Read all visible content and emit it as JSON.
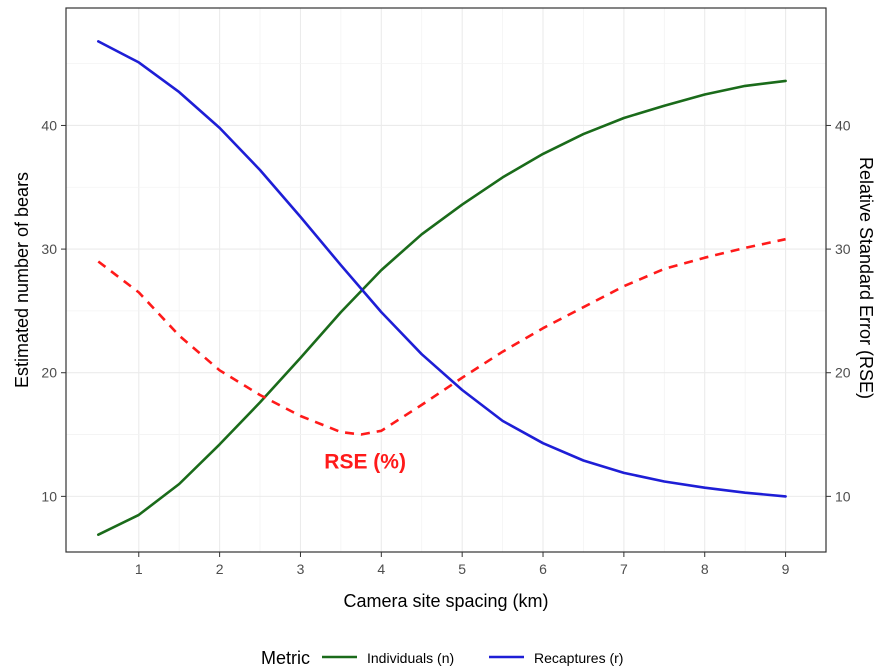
{
  "chart_data": {
    "type": "line",
    "xlabel": "Camera site spacing (km)",
    "ylabel": "Estimated number of bears",
    "y2label": "Relative Standard Error (RSE)",
    "xlim": [
      0.1,
      9.5
    ],
    "ylim": [
      5.5,
      49.5
    ],
    "x_ticks": [
      1,
      2,
      3,
      4,
      5,
      6,
      7,
      8,
      9
    ],
    "y_ticks": [
      10,
      20,
      30,
      40
    ],
    "y2_ticks": [
      10,
      20,
      30,
      40
    ],
    "grid": true,
    "legend_position": "bottom",
    "legend_title": "Metric",
    "series": [
      {
        "name": "Individuals (n)",
        "color": "#1a6b1a",
        "style": "solid",
        "x": [
          0.5,
          1.0,
          1.5,
          2.0,
          2.5,
          3.0,
          3.5,
          4.0,
          4.5,
          5.0,
          5.5,
          6.0,
          6.5,
          7.0,
          7.5,
          8.0,
          8.5,
          9.0
        ],
        "y": [
          6.9,
          8.5,
          11.0,
          14.2,
          17.6,
          21.2,
          24.9,
          28.3,
          31.2,
          33.6,
          35.8,
          37.7,
          39.3,
          40.6,
          41.6,
          42.5,
          43.2,
          43.6
        ]
      },
      {
        "name": "Recaptures (r)",
        "color": "#1e1ed6",
        "style": "solid",
        "x": [
          0.5,
          1.0,
          1.5,
          2.0,
          2.5,
          3.0,
          3.5,
          4.0,
          4.5,
          5.0,
          5.5,
          6.0,
          6.5,
          7.0,
          7.5,
          8.0,
          8.5,
          9.0
        ],
        "y": [
          46.8,
          45.1,
          42.7,
          39.8,
          36.4,
          32.6,
          28.7,
          24.9,
          21.5,
          18.6,
          16.1,
          14.3,
          12.9,
          11.9,
          11.2,
          10.7,
          10.3,
          10.0
        ]
      },
      {
        "name": "RSE (%)",
        "color": "#ff1a1a",
        "style": "dashed",
        "axis": "right",
        "x": [
          0.5,
          1.0,
          1.5,
          2.0,
          2.5,
          3.0,
          3.5,
          3.75,
          4.0,
          4.5,
          5.0,
          5.5,
          6.0,
          6.5,
          7.0,
          7.5,
          8.0,
          8.5,
          9.0
        ],
        "y": [
          29.0,
          26.5,
          23.0,
          20.2,
          18.2,
          16.5,
          15.2,
          15.0,
          15.3,
          17.4,
          19.6,
          21.7,
          23.6,
          25.3,
          27.0,
          28.4,
          29.3,
          30.1,
          30.8
        ]
      }
    ],
    "annotations": [
      {
        "text": "RSE (%)",
        "x": 3.8,
        "y": 12.8,
        "color": "#ff1a1a"
      }
    ]
  }
}
